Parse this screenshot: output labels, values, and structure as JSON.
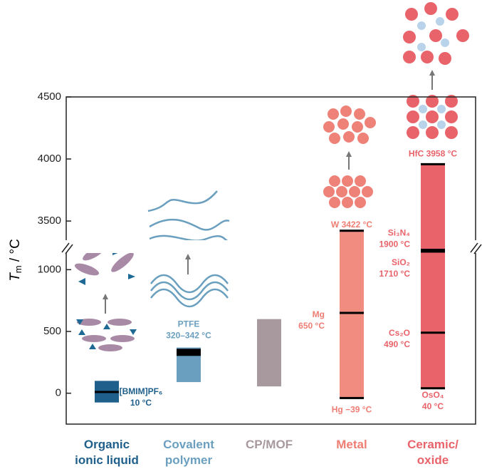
{
  "chart_data": {
    "type": "range-bar",
    "y_label": {
      "symbol": "T",
      "subscript": "m",
      "unit": " / °C"
    },
    "ylim": [
      -250,
      4500
    ],
    "y_break": [
      1100,
      3380
    ],
    "yticks": [
      0,
      500,
      1000,
      3500,
      4000,
      4500
    ],
    "bars": [
      {
        "category": "Organic ionic liquid",
        "color": "#1f5f8b",
        "label_color": "#1f5f8b",
        "range": [
          -75,
          100
        ],
        "markers": [
          {
            "value": 10,
            "label": [
              "[BMIM]PF₆",
              "10 °C"
            ]
          }
        ]
      },
      {
        "category": "Covalent polymer",
        "color": "#6a9fbf",
        "label_color": "#6a9fbf",
        "range": [
          90,
          370
        ],
        "markers": [
          {
            "range": [
              320,
              342
            ],
            "label": [
              "PTFE",
              "320–342 °C"
            ]
          }
        ]
      },
      {
        "category": "CP/MOF",
        "color": "#a8999f",
        "label_color": "#a8999f",
        "range": [
          55,
          600
        ],
        "markers": []
      },
      {
        "category": "Metal",
        "color": "#f08c80",
        "label_color": "#ee7e74",
        "range": [
          -39,
          3422
        ],
        "markers": [
          {
            "value": 650,
            "label": [
              "Mg",
              "650 °C"
            ]
          },
          {
            "value": 3422,
            "label": [
              "W 3422 °C"
            ]
          },
          {
            "value": -39,
            "label": [
              "Hg −39 °C"
            ]
          }
        ]
      },
      {
        "category": "Ceramic/ oxide",
        "color": "#e8636a",
        "label_color": "#e8636a",
        "range": [
          40,
          3958
        ],
        "markers": [
          {
            "value": 3958,
            "label": [
              "HfC 3958 °C"
            ]
          },
          {
            "value": 1900,
            "label": [
              "Si₃N₄",
              "1900 °C"
            ]
          },
          {
            "value": 1710,
            "label": [
              "SiO₂",
              "1710 °C"
            ]
          },
          {
            "value": 490,
            "label": [
              "Cs₂O",
              "490 °C"
            ]
          },
          {
            "value": 40,
            "label": [
              "OsO₄",
              "40 °C"
            ]
          }
        ]
      }
    ]
  }
}
